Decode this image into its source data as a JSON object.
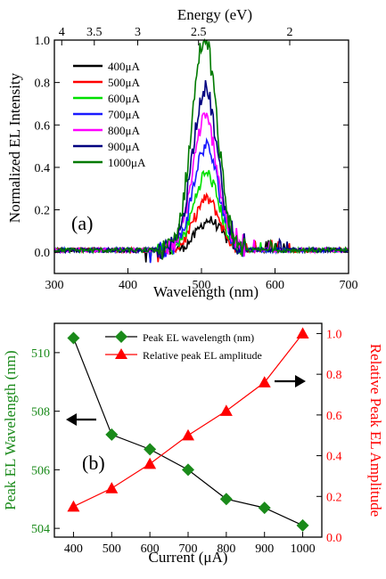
{
  "chart_data": [
    {
      "type": "line",
      "panel_label": "(a)",
      "xlabel": "Wavelength (nm)",
      "ylabel": "Normalized EL Intensity",
      "top_axis_label": "Energy (eV)",
      "xlim": [
        300,
        700
      ],
      "ylim": [
        -0.1,
        1.0
      ],
      "x_ticks": [
        "300",
        "400",
        "500",
        "600",
        "700"
      ],
      "y_ticks": [
        "0.0",
        "0.2",
        "0.4",
        "0.6",
        "0.8",
        "1.0"
      ],
      "top_ticks": [
        {
          "label": "4",
          "energy": 4
        },
        {
          "label": "3.5",
          "energy": 3.5
        },
        {
          "label": "3",
          "energy": 3
        },
        {
          "label": "2.5",
          "energy": 2.5
        },
        {
          "label": "2",
          "energy": 2
        }
      ],
      "legend_position": "top-left",
      "series": [
        {
          "name": "400μA",
          "color": "#000000",
          "peak_wavelength": 510.5,
          "peak": 0.14
        },
        {
          "name": "500μA",
          "color": "#ff0000",
          "peak_wavelength": 507.2,
          "peak": 0.24
        },
        {
          "name": "600μA",
          "color": "#00e000",
          "peak_wavelength": 506.7,
          "peak": 0.36
        },
        {
          "name": "700μA",
          "color": "#1a1aff",
          "peak_wavelength": 506.0,
          "peak": 0.49
        },
        {
          "name": "800μA",
          "color": "#ff00ff",
          "peak_wavelength": 505.0,
          "peak": 0.62
        },
        {
          "name": "900μA",
          "color": "#000080",
          "peak_wavelength": 504.7,
          "peak": 0.76
        },
        {
          "name": "1000μA",
          "color": "#007a00",
          "peak_wavelength": 504.1,
          "peak": 1.0
        }
      ]
    },
    {
      "type": "line",
      "panel_label": "(b)",
      "xlabel": "Current (μA)",
      "ylabel_left": "Peak EL Wavelength (nm)",
      "ylabel_right": "Relative Peak EL Amplitude",
      "xlim": [
        350,
        1050
      ],
      "ylim_left": [
        503.7,
        511.0
      ],
      "ylim_right": [
        0.0,
        1.05
      ],
      "x_ticks": [
        "400",
        "500",
        "600",
        "700",
        "800",
        "900",
        "1000"
      ],
      "y_ticks_left": [
        "504",
        "506",
        "508",
        "510"
      ],
      "y_ticks_right": [
        "0.0",
        "0.2",
        "0.4",
        "0.6",
        "0.8",
        "1.0"
      ],
      "legend_position": "top-right",
      "x": [
        400,
        500,
        600,
        700,
        800,
        900,
        1000
      ],
      "series": [
        {
          "name": "Peak EL wavelength (nm)",
          "axis": "left",
          "color": "#1a8a1a",
          "marker": "diamond",
          "values": [
            510.5,
            507.2,
            506.7,
            506.0,
            505.0,
            504.7,
            504.1
          ]
        },
        {
          "name": "Relative peak EL amplitude",
          "axis": "right",
          "color": "#ff0000",
          "marker": "triangle",
          "values": [
            0.15,
            0.24,
            0.36,
            0.5,
            0.62,
            0.76,
            1.0
          ]
        }
      ]
    }
  ]
}
